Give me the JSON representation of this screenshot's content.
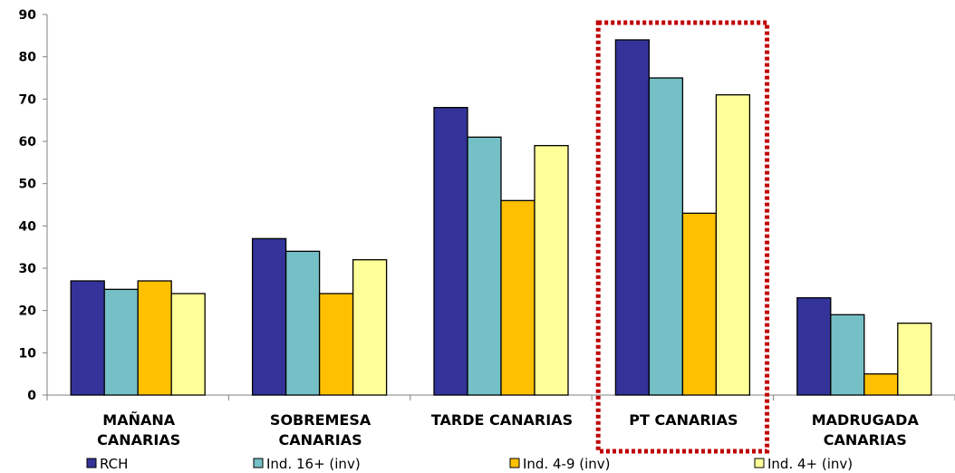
{
  "chart_data": {
    "type": "bar",
    "categories": [
      [
        "MAÑANA",
        "CANARIAS"
      ],
      [
        "SOBREMESA",
        "CANARIAS"
      ],
      [
        "TARDE CANARIAS"
      ],
      [
        "PT CANARIAS"
      ],
      [
        "MADRUGADA",
        "CANARIAS"
      ]
    ],
    "series": [
      {
        "name": "RCH",
        "color": "#333399",
        "values": [
          27,
          37,
          68,
          84,
          23
        ]
      },
      {
        "name": "Ind. 16+ (inv)",
        "color": "#74C0C6",
        "values": [
          25,
          34,
          61,
          75,
          19
        ]
      },
      {
        "name": "Ind. 4-9 (inv)",
        "color": "#FFC000",
        "values": [
          27,
          24,
          46,
          43,
          5
        ]
      },
      {
        "name": "Ind. 4+ (inv)",
        "color": "#FFFF99",
        "values": [
          24,
          32,
          59,
          71,
          17
        ]
      }
    ],
    "ylim": [
      0,
      90
    ],
    "yticks": [
      0,
      10,
      20,
      30,
      40,
      50,
      60,
      70,
      80,
      90
    ],
    "title": "",
    "xlabel": "",
    "ylabel": "",
    "grid": false,
    "legend_position": "bottom",
    "highlight": {
      "category_index": 3,
      "style": "dotted",
      "color": "#C00000"
    }
  }
}
